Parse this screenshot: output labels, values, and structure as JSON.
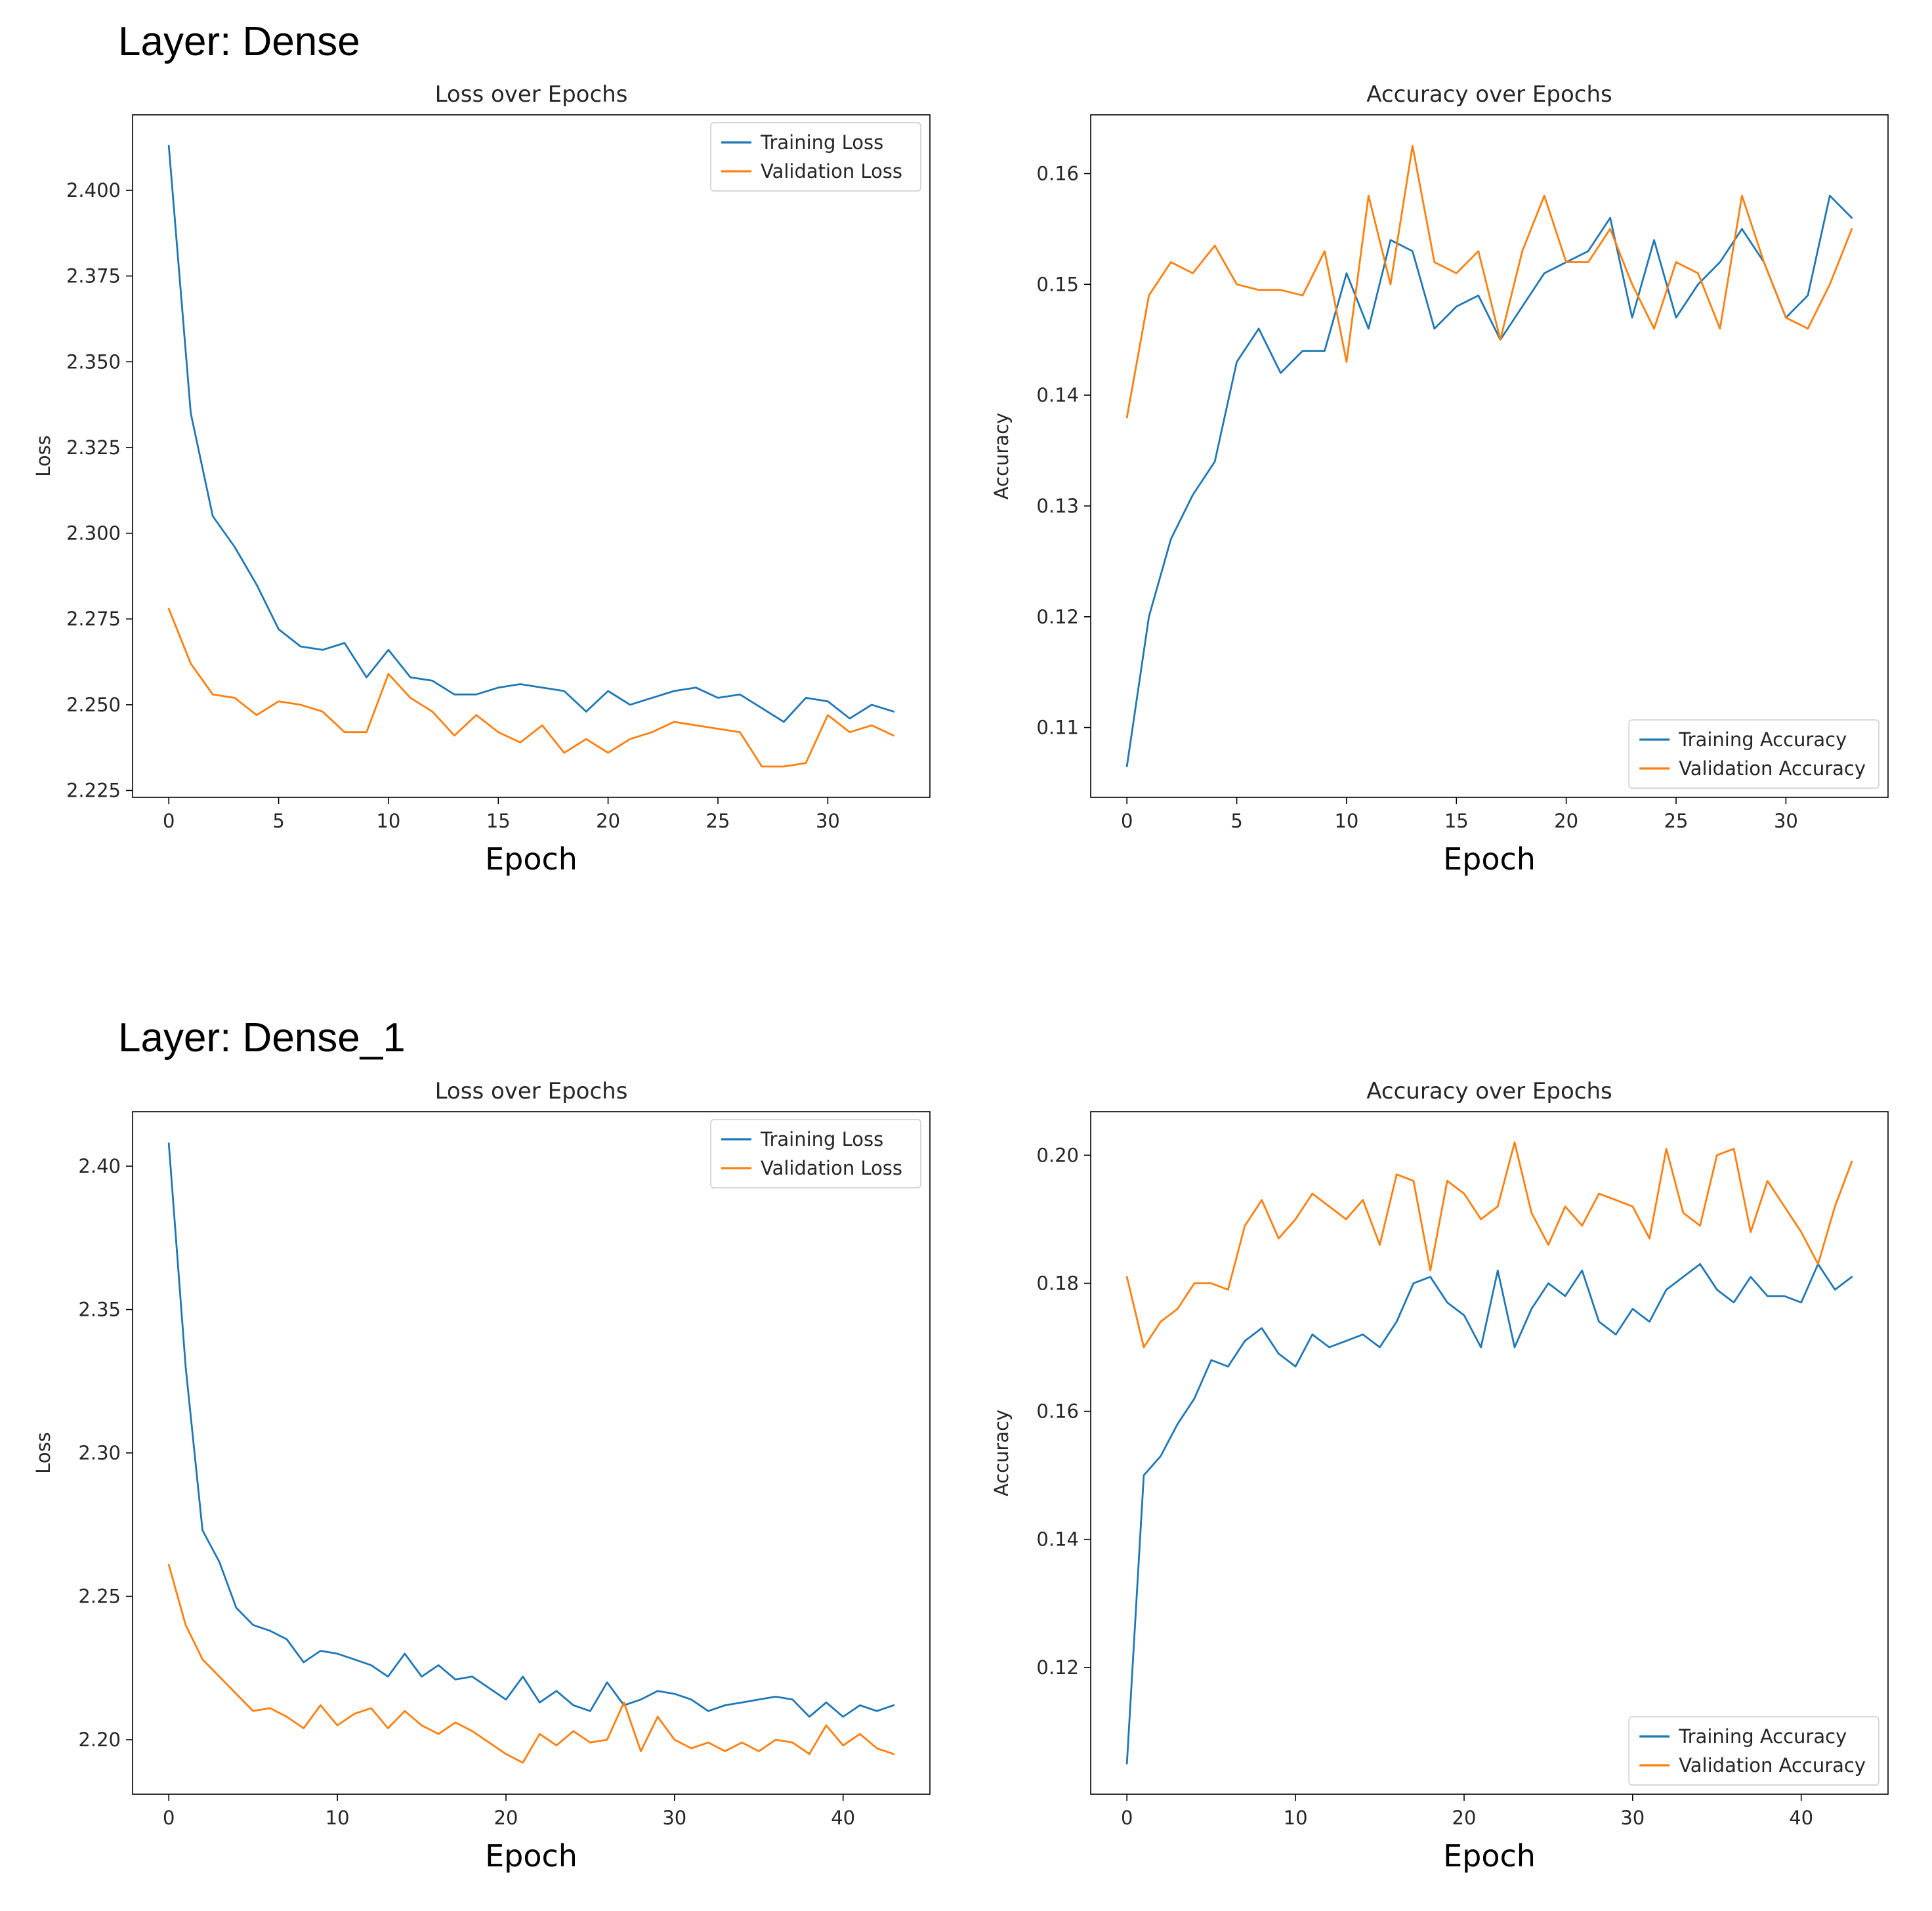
{
  "page": {
    "background": "#ffffff"
  },
  "colors": {
    "training": "#1f77b4",
    "validation": "#ff7f0e",
    "chart_text": "#262626",
    "axis": "#000000",
    "legend_border": "#cccccc"
  },
  "sections": [
    {
      "title": "Layer: Dense"
    },
    {
      "title": "Layer: Dense_1"
    }
  ],
  "chart_data": [
    {
      "id": "dense-loss-chart",
      "type": "line",
      "title": "Loss over Epochs",
      "xlabel": "Epoch",
      "ylabel": "Loss",
      "x_note": "x values are epoch indices 0..33, step 1",
      "n_points": 34,
      "xlim": [
        -1.65,
        34.65
      ],
      "ylim": [
        2.223,
        2.422
      ],
      "xticks": [
        0,
        5,
        10,
        15,
        20,
        25,
        30
      ],
      "yticks": [
        2.225,
        2.25,
        2.275,
        2.3,
        2.325,
        2.35,
        2.375,
        2.4
      ],
      "ytick_decimals": 3,
      "grid": false,
      "legend": "top-right",
      "series": [
        {
          "name": "Training Loss",
          "color": "#1f77b4",
          "values": [
            2.413,
            2.335,
            2.305,
            2.296,
            2.285,
            2.272,
            2.267,
            2.266,
            2.268,
            2.258,
            2.266,
            2.258,
            2.257,
            2.253,
            2.253,
            2.255,
            2.256,
            2.255,
            2.254,
            2.248,
            2.254,
            2.25,
            2.252,
            2.254,
            2.255,
            2.252,
            2.253,
            2.249,
            2.245,
            2.252,
            2.251,
            2.246,
            2.25,
            2.248
          ]
        },
        {
          "name": "Validation Loss",
          "color": "#ff7f0e",
          "values": [
            2.278,
            2.262,
            2.253,
            2.252,
            2.247,
            2.251,
            2.25,
            2.248,
            2.242,
            2.242,
            2.259,
            2.252,
            2.248,
            2.241,
            2.247,
            2.242,
            2.239,
            2.244,
            2.236,
            2.24,
            2.236,
            2.24,
            2.242,
            2.245,
            2.244,
            2.243,
            2.242,
            2.232,
            2.232,
            2.233,
            2.247,
            2.242,
            2.244,
            2.241
          ]
        }
      ]
    },
    {
      "id": "dense-accuracy-chart",
      "type": "line",
      "title": "Accuracy over Epochs",
      "xlabel": "Epoch",
      "ylabel": "Accuracy",
      "x_note": "x values are epoch indices 0..33, step 1",
      "n_points": 34,
      "xlim": [
        -1.65,
        34.65
      ],
      "ylim": [
        0.1037,
        0.1653
      ],
      "xticks": [
        0,
        5,
        10,
        15,
        20,
        25,
        30
      ],
      "yticks": [
        0.11,
        0.12,
        0.13,
        0.14,
        0.15,
        0.16
      ],
      "ytick_decimals": 2,
      "grid": false,
      "legend": "bottom-right",
      "series": [
        {
          "name": "Training Accuracy",
          "color": "#1f77b4",
          "values": [
            0.1065,
            0.12,
            0.127,
            0.131,
            0.134,
            0.143,
            0.146,
            0.142,
            0.144,
            0.144,
            0.151,
            0.146,
            0.154,
            0.153,
            0.146,
            0.148,
            0.149,
            0.145,
            0.148,
            0.151,
            0.152,
            0.153,
            0.156,
            0.147,
            0.154,
            0.147,
            0.15,
            0.152,
            0.155,
            0.152,
            0.147,
            0.149,
            0.158,
            0.156
          ]
        },
        {
          "name": "Validation Accuracy",
          "color": "#ff7f0e",
          "values": [
            0.138,
            0.149,
            0.152,
            0.151,
            0.1535,
            0.15,
            0.1495,
            0.1495,
            0.149,
            0.153,
            0.143,
            0.158,
            0.15,
            0.1625,
            0.152,
            0.151,
            0.153,
            0.145,
            0.153,
            0.158,
            0.152,
            0.152,
            0.155,
            0.15,
            0.146,
            0.152,
            0.151,
            0.146,
            0.158,
            0.152,
            0.147,
            0.146,
            0.15,
            0.155
          ]
        }
      ]
    },
    {
      "id": "dense1-loss-chart",
      "type": "line",
      "title": "Loss over Epochs",
      "xlabel": "Epoch",
      "ylabel": "Loss",
      "x_note": "x values are epoch indices 0..43, step 1",
      "n_points": 44,
      "xlim": [
        -2.15,
        45.15
      ],
      "ylim": [
        2.181,
        2.419
      ],
      "xticks": [
        0,
        10,
        20,
        30,
        40
      ],
      "yticks": [
        2.2,
        2.25,
        2.3,
        2.35,
        2.4
      ],
      "ytick_decimals": 2,
      "grid": false,
      "legend": "top-right",
      "series": [
        {
          "name": "Training Loss",
          "color": "#1f77b4",
          "values": [
            2.408,
            2.33,
            2.273,
            2.262,
            2.246,
            2.24,
            2.238,
            2.235,
            2.227,
            2.231,
            2.23,
            2.228,
            2.226,
            2.222,
            2.23,
            2.222,
            2.226,
            2.221,
            2.222,
            2.218,
            2.214,
            2.222,
            2.213,
            2.217,
            2.212,
            2.21,
            2.22,
            2.212,
            2.214,
            2.217,
            2.216,
            2.214,
            2.21,
            2.212,
            2.213,
            2.214,
            2.215,
            2.214,
            2.208,
            2.213,
            2.208,
            2.212,
            2.21,
            2.212
          ]
        },
        {
          "name": "Validation Loss",
          "color": "#ff7f0e",
          "values": [
            2.261,
            2.24,
            2.228,
            2.222,
            2.216,
            2.21,
            2.211,
            2.208,
            2.204,
            2.212,
            2.205,
            2.209,
            2.211,
            2.204,
            2.21,
            2.205,
            2.202,
            2.206,
            2.203,
            2.199,
            2.195,
            2.192,
            2.202,
            2.198,
            2.203,
            2.199,
            2.2,
            2.213,
            2.196,
            2.208,
            2.2,
            2.197,
            2.199,
            2.196,
            2.199,
            2.196,
            2.2,
            2.199,
            2.195,
            2.205,
            2.198,
            2.202,
            2.197,
            2.195
          ]
        }
      ]
    },
    {
      "id": "dense1-accuracy-chart",
      "type": "line",
      "title": "Accuracy over Epochs",
      "xlabel": "Epoch",
      "ylabel": "Accuracy",
      "x_note": "x values are epoch indices 0..43, step 1",
      "n_points": 44,
      "xlim": [
        -2.15,
        45.15
      ],
      "ylim": [
        0.1002,
        0.2068
      ],
      "xticks": [
        0,
        10,
        20,
        30,
        40
      ],
      "yticks": [
        0.12,
        0.14,
        0.16,
        0.18,
        0.2
      ],
      "ytick_decimals": 2,
      "grid": false,
      "legend": "bottom-right",
      "series": [
        {
          "name": "Training Accuracy",
          "color": "#1f77b4",
          "values": [
            0.105,
            0.15,
            0.153,
            0.158,
            0.162,
            0.168,
            0.167,
            0.171,
            0.173,
            0.169,
            0.167,
            0.172,
            0.17,
            0.171,
            0.172,
            0.17,
            0.174,
            0.18,
            0.181,
            0.177,
            0.175,
            0.17,
            0.182,
            0.17,
            0.176,
            0.18,
            0.178,
            0.182,
            0.174,
            0.172,
            0.176,
            0.174,
            0.179,
            0.181,
            0.183,
            0.179,
            0.177,
            0.181,
            0.178,
            0.178,
            0.177,
            0.183,
            0.179,
            0.181
          ]
        },
        {
          "name": "Validation Accuracy",
          "color": "#ff7f0e",
          "values": [
            0.181,
            0.17,
            0.174,
            0.176,
            0.18,
            0.18,
            0.179,
            0.189,
            0.193,
            0.187,
            0.19,
            0.194,
            0.192,
            0.19,
            0.193,
            0.186,
            0.197,
            0.196,
            0.182,
            0.196,
            0.194,
            0.19,
            0.192,
            0.202,
            0.191,
            0.186,
            0.192,
            0.189,
            0.194,
            0.193,
            0.192,
            0.187,
            0.201,
            0.191,
            0.189,
            0.2,
            0.201,
            0.188,
            0.196,
            0.192,
            0.188,
            0.183,
            0.192,
            0.199
          ]
        }
      ]
    }
  ]
}
